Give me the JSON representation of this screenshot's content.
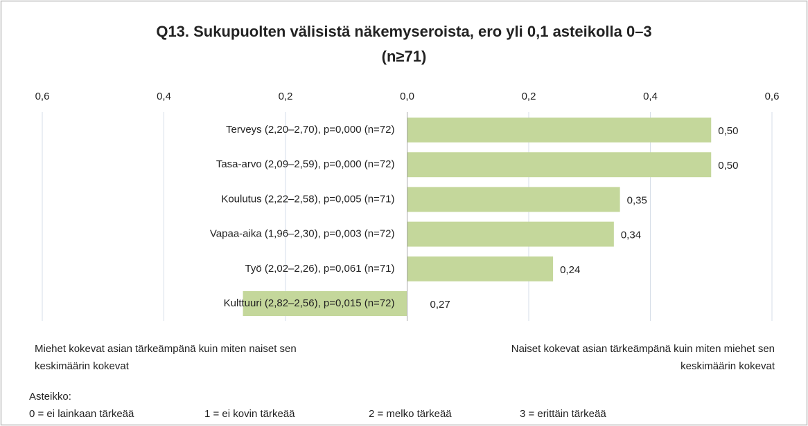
{
  "chart_data": {
    "type": "hbar",
    "title": [
      "Q13. Sukupuolten välisistä näkemyseroista, ero yli 0,1 asteikolla 0–3",
      "(n≥71)"
    ],
    "categories": [
      "Terveys (2,20–2,70), p=0,000 (n=72)",
      "Tasa-arvo (2,09–2,59), p=0,000 (n=72)",
      "Koulutus (2,22–2,58), p=0,005 (n=71)",
      "Vapaa-aika (1,96–2,30), p=0,003 (n=72)",
      "Työ (2,02–2,26), p=0,061 (n=71)",
      "Kulttuuri (2,82–2,56), p=0,015 (n=72)"
    ],
    "values": [
      0.5,
      0.5,
      0.35,
      0.34,
      0.24,
      -0.27
    ],
    "value_labels": [
      "0,50",
      "0,50",
      "0,35",
      "0,34",
      "0,24",
      "0,27"
    ],
    "color": "#c4d79b",
    "xlim": [
      -0.6,
      0.6
    ],
    "xticks": [
      {
        "value": -0.6,
        "label": "0,6"
      },
      {
        "value": -0.4,
        "label": "0,4"
      },
      {
        "value": -0.2,
        "label": "0,2"
      },
      {
        "value": 0,
        "label": "0,0"
      },
      {
        "value": 0.2,
        "label": "0,2"
      },
      {
        "value": 0.4,
        "label": "0,4"
      },
      {
        "value": 0.6,
        "label": "0,6"
      }
    ],
    "grid": true,
    "annotations": {
      "left": [
        "Miehet kokevat asian tärkeämpänä kuin miten naiset sen",
        "keskimäärin kokevat"
      ],
      "right": [
        "Naiset kokevat asian tärkeämpänä kuin miten miehet sen",
        "keskimäärin kokevat"
      ],
      "scale_title": "Asteikko:",
      "scale_items": [
        "0 = ei lainkaan tärkeää",
        "1 = ei kovin tärkeää",
        "2 = melko tärkeää",
        "3 = erittäin tärkeää"
      ]
    }
  }
}
